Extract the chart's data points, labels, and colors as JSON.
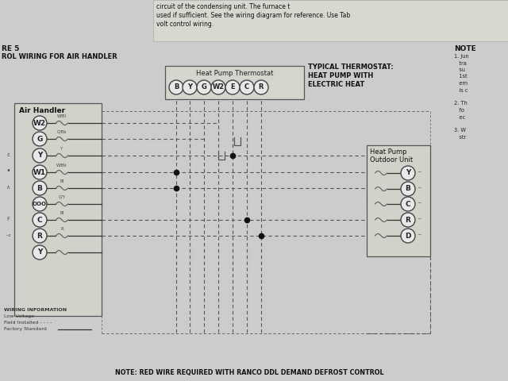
{
  "bg_color": "#cccccc",
  "header_bg": "#d5d5ce",
  "title_top1": "circuit of the condensing unit. The furnace t",
  "title_top2": "used if sufficient. See the wiring diagram for reference. Use Tab",
  "title_top3": "volt control wiring.",
  "figure_label": "RE 5",
  "figure_title": "ROL WIRING FOR AIR HANDLER",
  "typical_label": "TYPICAL THERMOSTAT:",
  "typical_line2": "HEAT PUMP WITH",
  "typical_line3": "ELECTRIC HEAT",
  "note_title": "NOTE",
  "thermostat_label": "Heat Pump Thermostat",
  "thermostat_terminals": [
    "B",
    "Y",
    "G",
    "W2",
    "E",
    "C",
    "R"
  ],
  "air_handler_label": "Air Handler",
  "air_handler_terminals": [
    "W2",
    "G",
    "Y",
    "W1",
    "B",
    "OOO",
    "C",
    "R",
    "Y"
  ],
  "air_handler_wire_labels": [
    "W/Bl",
    "G/Bk",
    "Y",
    "W/Bk",
    "Bl",
    "G/Y",
    "Bl",
    "R",
    ""
  ],
  "outdoor_unit_label": "Heat Pump\nOutdoor Unit",
  "outdoor_terminals": [
    "Y",
    "B",
    "C",
    "R",
    "D"
  ],
  "bottom_note": "NOTE: RED WIRE REQUIRED WITH RANCO DDL DEMAND DEFROST CONTROL",
  "wire_color": "#555566",
  "dot_color": "#111111",
  "terminal_fc": "#e8e8e8",
  "terminal_ec": "#444444",
  "box_fc": "#d0d0c8",
  "box_ec": "#555555"
}
